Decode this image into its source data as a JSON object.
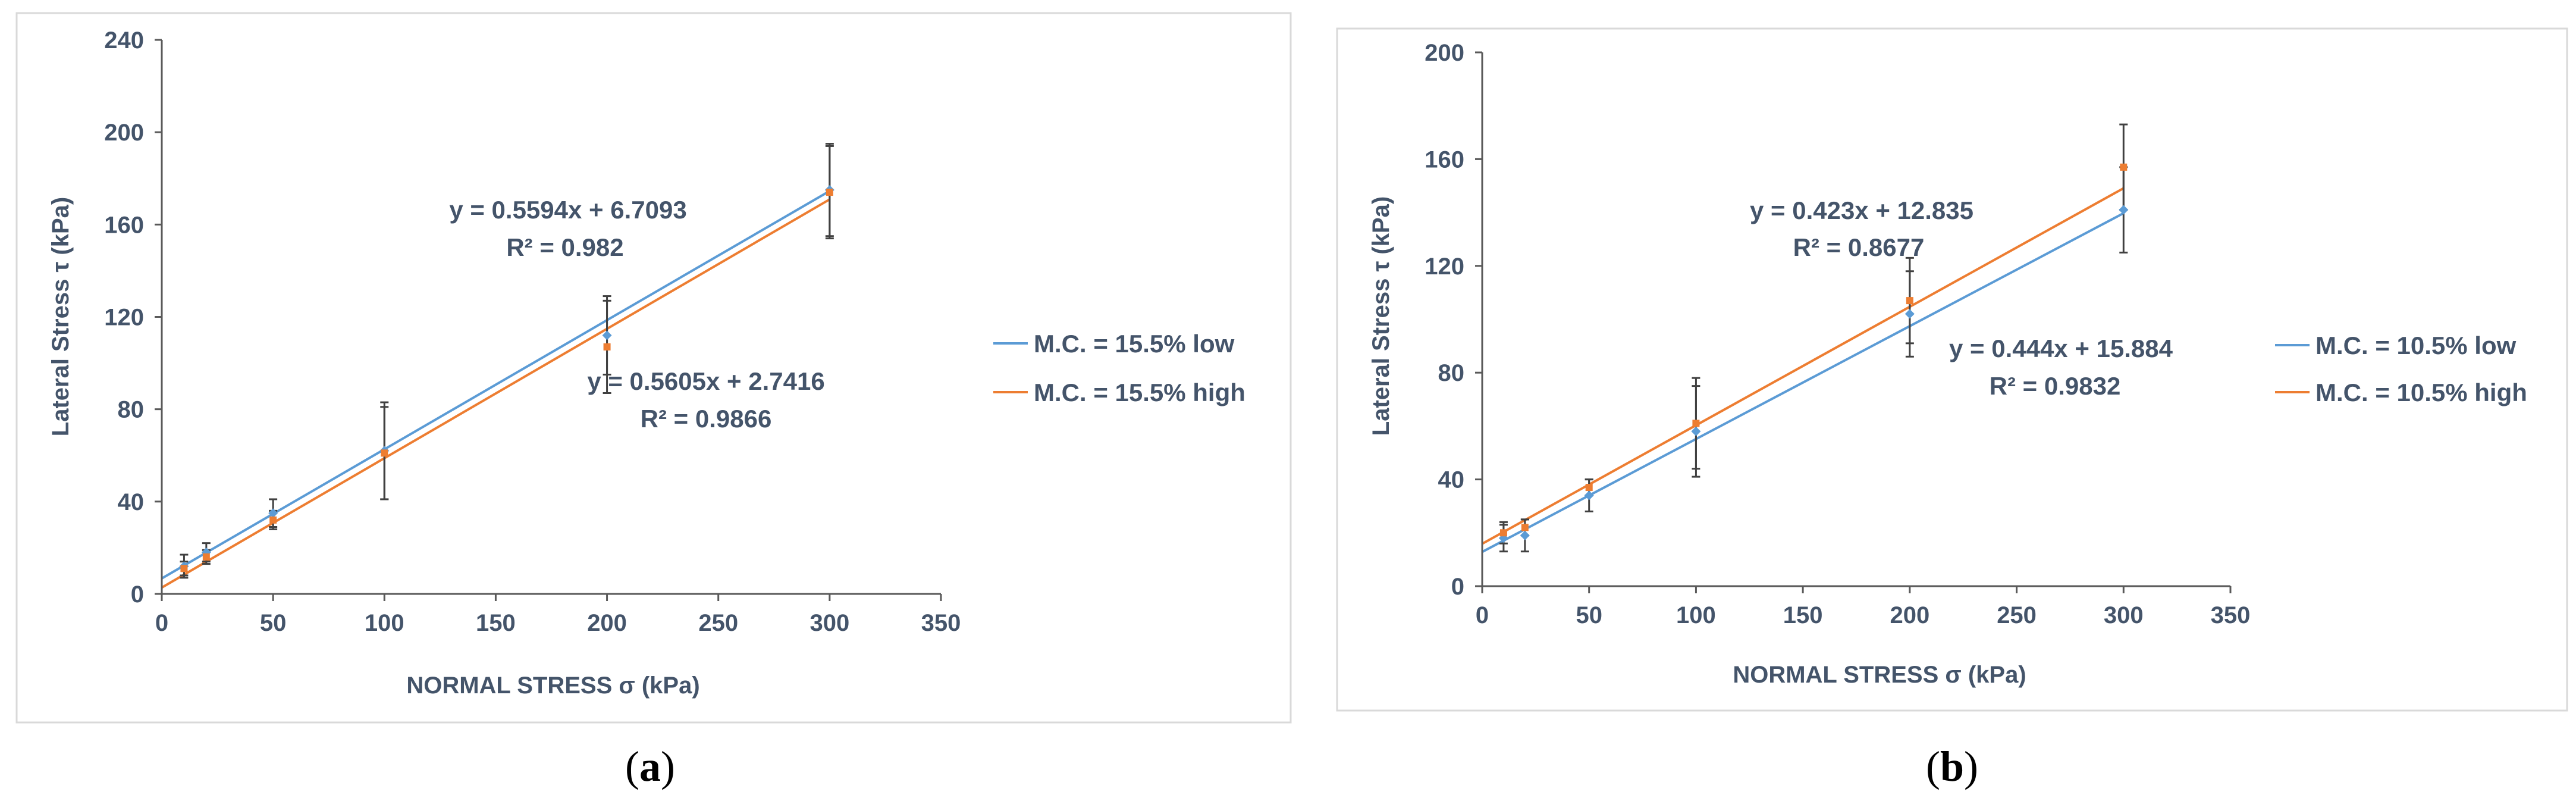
{
  "colors": {
    "low": "#5b9bd5",
    "high": "#ed7d31",
    "axis": "#595959",
    "text": "#44546a",
    "border": "#d9d9d9"
  },
  "chart_data": [
    {
      "type": "scatter",
      "panel_label": "a",
      "xlabel": "NORMAL STRESS σ (kPa)",
      "ylabel": "Lateral Stress τ (kPa)",
      "xlim": [
        0,
        350
      ],
      "ylim": [
        0,
        240
      ],
      "xticks": [
        0,
        50,
        100,
        150,
        200,
        250,
        300,
        350
      ],
      "yticks": [
        0,
        40,
        80,
        120,
        160,
        200,
        240
      ],
      "legend_position": "right",
      "series": [
        {
          "name": "M.C. = 15.5% low",
          "x": [
            10,
            20,
            50,
            100,
            200,
            300
          ],
          "y": [
            12,
            18,
            35,
            62,
            112,
            175
          ],
          "err": [
            5,
            4,
            6,
            21,
            17,
            20
          ],
          "trend": {
            "slope": 0.5594,
            "intercept": 6.7093,
            "equation": "y = 0.5594x + 6.7093",
            "r2": "R² = 0.982"
          }
        },
        {
          "name": "M.C. = 15.5% high",
          "x": [
            10,
            20,
            50,
            100,
            200,
            300
          ],
          "y": [
            11,
            16,
            32,
            61,
            107,
            174
          ],
          "err": [
            3,
            3,
            4,
            20,
            20,
            20
          ],
          "trend": {
            "slope": 0.5605,
            "intercept": 2.7416,
            "equation": "y = 0.5605x + 2.7416",
            "r2": "R² = 0.9866"
          }
        }
      ]
    },
    {
      "type": "scatter",
      "panel_label": "b",
      "xlabel": "NORMAL STRESS σ (kPa)",
      "ylabel": "Lateral Stress τ (kPa)",
      "xlim": [
        0,
        350
      ],
      "ylim": [
        0,
        200
      ],
      "xticks": [
        0,
        50,
        100,
        150,
        200,
        250,
        300,
        350
      ],
      "yticks": [
        0,
        40,
        80,
        120,
        160,
        200
      ],
      "legend_position": "right",
      "series": [
        {
          "name": "M.C. = 10.5% low",
          "x": [
            10,
            20,
            50,
            100,
            200,
            300
          ],
          "y": [
            18,
            19,
            34,
            58,
            102,
            141
          ],
          "err": [
            5,
            6,
            6,
            17,
            16,
            16
          ],
          "trend": {
            "slope": 0.423,
            "intercept": 12.835,
            "equation": "y = 0.423x + 12.835",
            "r2": "R² = 0.8677"
          }
        },
        {
          "name": "M.C. = 10.5% high",
          "x": [
            10,
            20,
            50,
            100,
            200,
            300
          ],
          "y": [
            20,
            22,
            37,
            61,
            107,
            157
          ],
          "err": [
            4,
            3,
            3,
            17,
            16,
            16
          ],
          "trend": {
            "slope": 0.444,
            "intercept": 15.884,
            "equation": "y = 0.444x + 15.884",
            "r2": "R² = 0.9832"
          }
        }
      ]
    }
  ]
}
